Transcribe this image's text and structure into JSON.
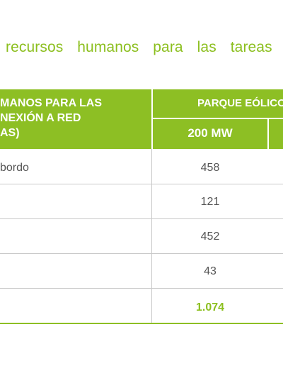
{
  "caption": "recursos humanos para las tareas",
  "table": {
    "header_left": "MANOS PARA LAS\nNEXIÓN A RED\nAS)",
    "header_right_top": "PARQUE EÓLICO",
    "header_right_sub": "200 MW",
    "rows": [
      {
        "label": "bordo",
        "value": "458"
      },
      {
        "label": "",
        "value": "121"
      },
      {
        "label": "",
        "value": "452"
      },
      {
        "label": "",
        "value": "43"
      }
    ],
    "total": "1.074"
  },
  "colors": {
    "accent": "#8dbf24",
    "text": "#555555",
    "rule": "#c9c9c9"
  }
}
